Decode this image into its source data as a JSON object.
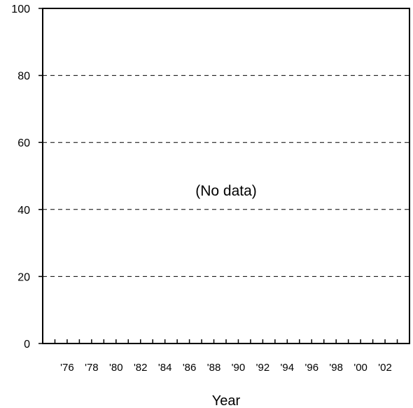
{
  "chart_data": {
    "type": "line",
    "title": "",
    "xlabel": "Year",
    "ylabel": "",
    "ylim": [
      0,
      100
    ],
    "yticks": [
      0,
      20,
      40,
      60,
      80,
      100
    ],
    "xlim": [
      1974,
      2004
    ],
    "xtick_years": [
      1976,
      1978,
      1980,
      1982,
      1984,
      1986,
      1988,
      1990,
      1992,
      1994,
      1996,
      1998,
      2000,
      2002
    ],
    "xtick_labels": [
      "'76",
      "'78",
      "'80",
      "'82",
      "'84",
      "'86",
      "'88",
      "'90",
      "'92",
      "'94",
      "'96",
      "'98",
      "'00",
      "'02"
    ],
    "minor_tick_step_years": 1,
    "grid": "horizontal dashed",
    "series": [],
    "annotation": "(No data)"
  }
}
